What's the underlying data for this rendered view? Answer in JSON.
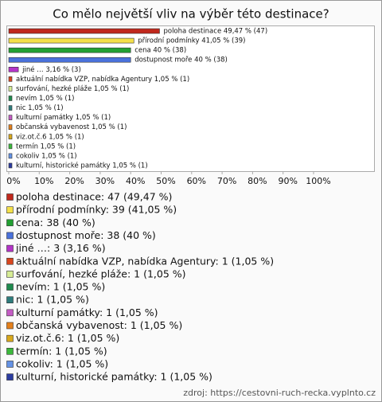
{
  "chart_data": {
    "type": "bar",
    "orientation": "horizontal",
    "title": "Co mělo největší vliv na výběr této destinace?",
    "categories": [
      "poloha destinace",
      "přírodní podmínky",
      "cena",
      "dostupnost moře",
      "jiné …",
      "aktuální nabídka VZP, nabídka Agentury",
      " surfování, hezké pláže",
      "nevím",
      "nic",
      "kulturní památky",
      "občanská vybavenost",
      "viz.ot.č.6",
      "termín",
      "cokoliv",
      "kulturní, historické památky"
    ],
    "values": [
      49.47,
      41.05,
      40,
      40,
      3.16,
      1.05,
      1.05,
      1.05,
      1.05,
      1.05,
      1.05,
      1.05,
      1.05,
      1.05,
      1.05
    ],
    "value_labels": [
      "poloha destinace 49,47 % (47)",
      "přírodní podmínky 41,05 % (39)",
      "cena 40 % (38)",
      "dostupnost moře 40 % (38)",
      "jiné … 3,16 % (3)",
      "aktuální nabídka VZP, nabídka Agentury 1,05 % (1)",
      " surfování, hezké pláže 1,05 % (1)",
      "nevím 1,05 % (1)",
      "nic 1,05 % (1)",
      "kulturní památky 1,05 % (1)",
      "občanská vybavenost 1,05 % (1)",
      "viz.ot.č.6 1,05 % (1)",
      "termín 1,05 % (1)",
      "cokoliv 1,05 % (1)",
      "kulturní, historické památky 1,05 % (1)"
    ],
    "legend_labels": [
      "poloha destinace: 47 (49,47 %)",
      "přírodní podmínky: 39 (41,05 %)",
      "cena: 38 (40 %)",
      "dostupnost moře: 38 (40 %)",
      "jiné …: 3 (3,16 %)",
      "aktuální nabídka VZP, nabídka Agentury: 1 (1,05 %)",
      " surfování, hezké pláže: 1 (1,05 %)",
      "nevím: 1 (1,05 %)",
      "nic: 1 (1,05 %)",
      "kulturní památky: 1 (1,05 %)",
      "občanská vybavenost: 1 (1,05 %)",
      "viz.ot.č.6: 1 (1,05 %)",
      "termín: 1 (1,05 %)",
      "cokoliv: 1 (1,05 %)",
      "kulturní, historické památky: 1 (1,05 %)"
    ],
    "colors": [
      "#c0281c",
      "#f4e04a",
      "#22a032",
      "#4a72dc",
      "#b434c8",
      "#d8461e",
      "#d6ec94",
      "#1f8a4e",
      "#2e7c7c",
      "#c45cc4",
      "#e4801c",
      "#d8a81c",
      "#3cb83c",
      "#6492e4",
      "#2c3ca0"
    ],
    "xlim": [
      0,
      100
    ],
    "xticks": [
      {
        "value": 0,
        "label": "0%"
      },
      {
        "value": 10,
        "label": "10%"
      },
      {
        "value": 20,
        "label": "20%"
      },
      {
        "value": 30,
        "label": "30%"
      },
      {
        "value": 40,
        "label": "40%"
      },
      {
        "value": 50,
        "label": "50%"
      },
      {
        "value": 60,
        "label": "60%"
      },
      {
        "value": 70,
        "label": "70%"
      },
      {
        "value": 80,
        "label": "80%"
      },
      {
        "value": 90,
        "label": "90%"
      },
      {
        "value": 100,
        "label": "100%"
      }
    ],
    "source": "zdroj: https://cestovni-ruch-recka.vyplnto.cz"
  }
}
